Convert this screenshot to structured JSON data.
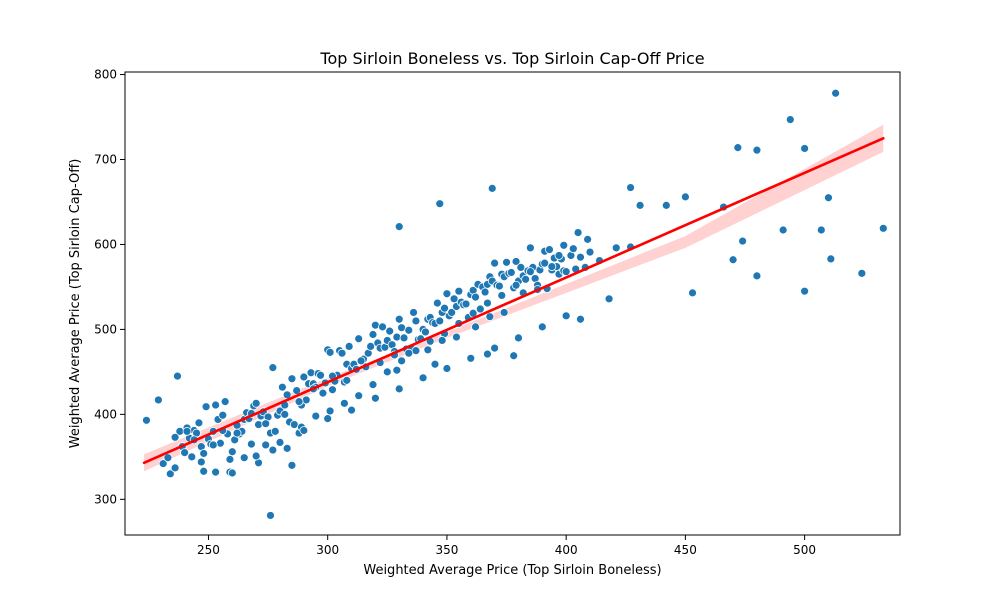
{
  "chart_data": {
    "type": "scatter",
    "title": "Top Sirloin Boneless vs. Top Sirloin Cap-Off Price",
    "xlabel": "Weighted Average Price (Top Sirloin Boneless)",
    "ylabel": "Weighted Average Price (Top Sirloin Cap-Off)",
    "xlim": [
      215,
      540
    ],
    "ylim": [
      258,
      803
    ],
    "xticks": [
      250,
      300,
      350,
      400,
      450,
      500
    ],
    "yticks": [
      300,
      400,
      500,
      600,
      700,
      800
    ],
    "grid": false,
    "colors": {
      "point": "#1f77b4",
      "regression": "#ff0000",
      "band": "#ff9999"
    },
    "regression": {
      "x": [
        223,
        533
      ],
      "y": [
        343,
        725
      ],
      "band_x": [
        223,
        300,
        350,
        450,
        533
      ],
      "band_low": [
        333,
        433,
        490,
        596,
        709
      ],
      "band_high": [
        353,
        443,
        497,
        610,
        741
      ]
    },
    "points": {
      "x": [
        224,
        229,
        231,
        233,
        234,
        236,
        237,
        238,
        239,
        240,
        241,
        242,
        243,
        244,
        245,
        246,
        247,
        248,
        249,
        250,
        251,
        252,
        253,
        254,
        255,
        256,
        257,
        258,
        259,
        260,
        261,
        262,
        263,
        264,
        265,
        266,
        267,
        268,
        269,
        270,
        271,
        272,
        273,
        274,
        275,
        276,
        277,
        278,
        279,
        280,
        281,
        282,
        283,
        284,
        285,
        286,
        287,
        288,
        289,
        290,
        291,
        292,
        293,
        294,
        295,
        296,
        297,
        298,
        299,
        300,
        301,
        302,
        303,
        304,
        305,
        306,
        307,
        308,
        309,
        310,
        311,
        312,
        313,
        314,
        315,
        316,
        317,
        318,
        319,
        320,
        321,
        322,
        323,
        324,
        325,
        326,
        327,
        328,
        329,
        330,
        331,
        332,
        333,
        334,
        335,
        336,
        337,
        338,
        339,
        340,
        341,
        342,
        343,
        344,
        345,
        346,
        347,
        348,
        349,
        350,
        351,
        352,
        353,
        354,
        355,
        356,
        357,
        358,
        359,
        360,
        361,
        362,
        363,
        364,
        365,
        366,
        367,
        368,
        369,
        370,
        371,
        372,
        373,
        374,
        375,
        376,
        377,
        378,
        379,
        380,
        381,
        382,
        383,
        384,
        385,
        386,
        387,
        388,
        389,
        390,
        391,
        392,
        393,
        394,
        395,
        396,
        397,
        398,
        399,
        400,
        402,
        404,
        406,
        408,
        410,
        414,
        418,
        421,
        427,
        431,
        442,
        450,
        453,
        466,
        470,
        472,
        474,
        480,
        480,
        491,
        494,
        500,
        500,
        507,
        510,
        524,
        533,
        236,
        241,
        247,
        253,
        259,
        265,
        271,
        277,
        283,
        289,
        295,
        301,
        307,
        313,
        319,
        325,
        331,
        337,
        343,
        349,
        355,
        361,
        367,
        373,
        379,
        385,
        391,
        397,
        403,
        409,
        260,
        270,
        280,
        290,
        300,
        310,
        320,
        330,
        340,
        350,
        360,
        370,
        380,
        390,
        400,
        276,
        285,
        330,
        347,
        369,
        329,
        345,
        367,
        378,
        406,
        427,
        511,
        513,
        244,
        248,
        252,
        256,
        262,
        268,
        274,
        282,
        288,
        294,
        302,
        308,
        314,
        322,
        328,
        334,
        342,
        348,
        354,
        362,
        368,
        374,
        382,
        388,
        394,
        399,
        405
      ],
      "y": [
        393,
        417,
        342,
        349,
        330,
        337,
        445,
        380,
        362,
        355,
        384,
        372,
        350,
        381,
        378,
        390,
        362,
        333,
        409,
        371,
        365,
        380,
        411,
        394,
        366,
        399,
        415,
        377,
        347,
        356,
        370,
        387,
        377,
        380,
        394,
        402,
        395,
        365,
        410,
        413,
        388,
        398,
        403,
        364,
        397,
        378,
        455,
        380,
        399,
        404,
        432,
        411,
        423,
        391,
        442,
        388,
        428,
        378,
        411,
        444,
        417,
        436,
        449,
        436,
        432,
        448,
        446,
        425,
        437,
        476,
        473,
        429,
        439,
        446,
        475,
        472,
        438,
        459,
        480,
        454,
        459,
        453,
        489,
        462,
        465,
        456,
        472,
        480,
        494,
        505,
        484,
        478,
        503,
        479,
        487,
        498,
        482,
        474,
        491,
        512,
        502,
        490,
        477,
        499,
        478,
        520,
        510,
        488,
        489,
        500,
        497,
        512,
        514,
        508,
        507,
        531,
        510,
        520,
        525,
        542,
        516,
        520,
        536,
        527,
        545,
        532,
        529,
        530,
        514,
        541,
        546,
        538,
        553,
        524,
        550,
        544,
        553,
        562,
        557,
        578,
        552,
        551,
        565,
        562,
        579,
        566,
        567,
        549,
        580,
        557,
        573,
        563,
        559,
        569,
        596,
        573,
        560,
        552,
        570,
        577,
        592,
        548,
        594,
        570,
        584,
        574,
        565,
        583,
        569,
        568,
        587,
        571,
        585,
        573,
        591,
        581,
        536,
        596,
        667,
        646,
        646,
        656,
        543,
        644,
        582,
        714,
        604,
        711,
        563,
        617,
        747,
        545,
        713,
        617,
        655,
        566,
        619,
        373,
        380,
        344,
        332,
        332,
        349,
        343,
        358,
        360,
        385,
        398,
        404,
        413,
        422,
        435,
        450,
        463,
        475,
        486,
        495,
        507,
        519,
        531,
        540,
        552,
        568,
        578,
        587,
        595,
        606,
        331,
        351,
        367,
        381,
        395,
        405,
        419,
        430,
        443,
        454,
        466,
        478,
        490,
        503,
        516,
        281,
        340,
        621,
        648,
        666,
        452,
        459,
        471,
        469,
        512,
        597,
        583,
        778,
        370,
        354,
        364,
        381,
        378,
        401,
        389,
        400,
        415,
        430,
        445,
        440,
        463,
        461,
        470,
        472,
        476,
        487,
        491,
        503,
        515,
        520,
        543,
        547,
        574,
        599,
        614
      ]
    }
  }
}
